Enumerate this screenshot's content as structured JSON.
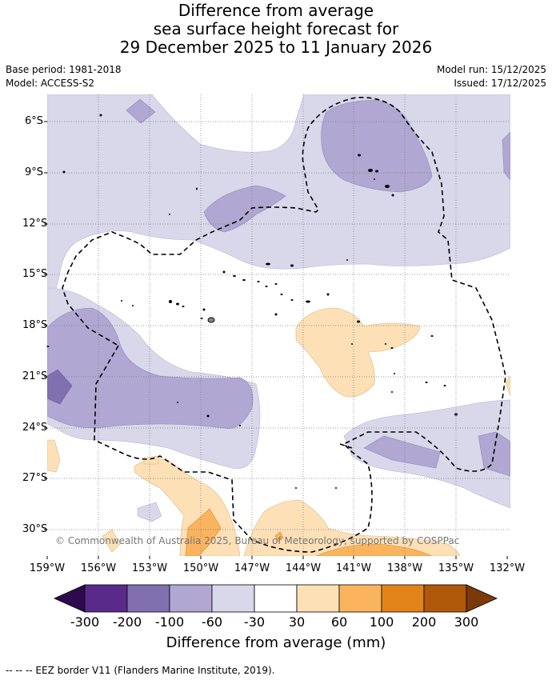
{
  "title": {
    "line1": "Difference from average",
    "line2": "sea surface height forecast for",
    "line3": "29 December 2025 to 11 January 2026"
  },
  "meta": {
    "base_period": "Base period: 1981-2018",
    "model": "Model: ACCESS-S2",
    "model_run": "Model run: 15/12/2025",
    "issued": "Issued: 17/12/2025"
  },
  "axes": {
    "lat_labels": [
      "6°S",
      "9°S",
      "12°S",
      "15°S",
      "18°S",
      "21°S",
      "24°S",
      "27°S",
      "30°S"
    ],
    "lon_labels": [
      "159°W",
      "156°W",
      "153°W",
      "150°W",
      "147°W",
      "144°W",
      "141°W",
      "138°W",
      "135°W",
      "132°W"
    ]
  },
  "copyright": "© Commonwealth of Australia 2025, Bureau of Meteorology, supported by COSPPac",
  "colorbar": {
    "title": "Difference from average (mm)",
    "ticks": [
      "-300",
      "-200",
      "-100",
      "-60",
      "-30",
      "30",
      "60",
      "100",
      "200",
      "300"
    ],
    "colors": {
      "below_min": "#2d0a4e",
      "c1": "#5a2a8a",
      "c2": "#8070b0",
      "c3": "#b0a8d2",
      "c4": "#d8d8ea",
      "c5": "#ffffff",
      "c6": "#fde0b6",
      "c7": "#fbb45e",
      "c8": "#e2841a",
      "c9": "#b0580a",
      "above_max": "#7a3a08"
    }
  },
  "footnote": "-- -- -- EEZ border V11 (Flanders Marine Institute, 2019)."
}
